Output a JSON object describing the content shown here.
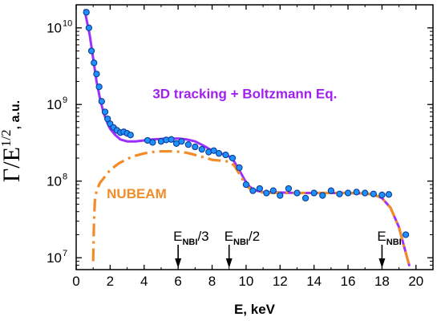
{
  "chart_data": {
    "type": "line",
    "xlabel": "E, keV",
    "ylabel": {
      "main": "Γ/E",
      "sup": "1/2",
      "suffix": ", a.u."
    },
    "xlim": [
      0,
      21
    ],
    "ylim": [
      7000000,
      20000000000
    ],
    "yscale": "log",
    "x_ticks": [
      0,
      2,
      4,
      6,
      8,
      10,
      12,
      14,
      16,
      18,
      20
    ],
    "y_ticks": [
      {
        "value": 10000000,
        "base": "10",
        "exp": "7"
      },
      {
        "value": 100000000,
        "base": "10",
        "exp": "8"
      },
      {
        "value": 1000000000,
        "base": "10",
        "exp": "9"
      },
      {
        "value": 10000000000,
        "base": "10",
        "exp": "10"
      }
    ],
    "annotations": [
      {
        "text": "3D tracking + Boltzmann Eq.",
        "color": "#a020f0",
        "x": 4.5,
        "y": 1200000000
      },
      {
        "text": "NUBEAM",
        "color": "#f28c28",
        "x": 1.8,
        "y": 60000000
      }
    ],
    "markers": [
      {
        "name": "E",
        "sub": "NBI",
        "suffix": "/3",
        "x": 6
      },
      {
        "name": "E",
        "sub": "NBI",
        "suffix": "/2",
        "x": 9
      },
      {
        "name": "E",
        "sub": "NBI",
        "suffix": "",
        "x": 18
      }
    ],
    "series": [
      {
        "style": "line",
        "color": "#9b30ff",
        "x": [
          0.5,
          0.8,
          1.0,
          1.2,
          1.4,
          1.6,
          1.8,
          2.0,
          2.3,
          2.6,
          3.0,
          3.5,
          4.0,
          4.5,
          5.0,
          5.5,
          6.0,
          6.5,
          7.0,
          7.5,
          8.0,
          8.5,
          9.0,
          9.3,
          9.6,
          9.9,
          10.2,
          10.5,
          11.0,
          12.0,
          13.0,
          14.0,
          15.0,
          16.0,
          17.0,
          17.5,
          18.0,
          18.5,
          19.0,
          19.3,
          19.6
        ],
        "y": [
          17000000000,
          8000000000,
          4000000000,
          2000000000,
          1200000000,
          800000000,
          600000000,
          480000000,
          400000000,
          350000000,
          330000000,
          330000000,
          340000000,
          350000000,
          355000000,
          360000000,
          360000000,
          350000000,
          330000000,
          290000000,
          250000000,
          230000000,
          210000000,
          180000000,
          140000000,
          105000000,
          85000000,
          76000000,
          72000000,
          71000000,
          70000000,
          70000000,
          70000000,
          70000000,
          69000000,
          67000000,
          60000000,
          45000000,
          25000000,
          14000000,
          8000000
        ]
      },
      {
        "style": "dashdot",
        "color": "#f28c28",
        "x": [
          1.0,
          1.05,
          1.1,
          1.2,
          1.4,
          1.7,
          2.0,
          2.5,
          3.0,
          3.5,
          4.0,
          4.5,
          5.0,
          5.5,
          6.0,
          6.5,
          7.0,
          7.5,
          8.0,
          8.5,
          9.0,
          9.3,
          9.6,
          9.9,
          10.2,
          10.5,
          11.0,
          12.0,
          13.0,
          14.0,
          15.0,
          16.0,
          17.0,
          17.5,
          18.0,
          18.5,
          19.0,
          19.3,
          19.6
        ],
        "y": [
          9000000,
          30000000,
          55000000,
          75000000,
          95000000,
          115000000,
          140000000,
          170000000,
          195000000,
          215000000,
          230000000,
          240000000,
          245000000,
          245000000,
          242000000,
          235000000,
          220000000,
          205000000,
          190000000,
          185000000,
          180000000,
          160000000,
          125000000,
          95000000,
          80000000,
          74000000,
          71000000,
          70000000,
          70000000,
          70000000,
          70000000,
          70000000,
          69000000,
          67000000,
          60000000,
          45000000,
          25000000,
          14000000,
          8000000
        ]
      },
      {
        "style": "scatter",
        "color": "#1e90ff",
        "x": [
          0.6,
          0.75,
          0.9,
          1.05,
          1.2,
          1.35,
          1.5,
          1.7,
          1.85,
          2.0,
          2.2,
          2.4,
          2.6,
          2.8,
          3.0,
          3.2,
          4.2,
          4.5,
          5.0,
          5.3,
          5.6,
          5.9,
          6.2,
          6.6,
          7.0,
          7.4,
          7.8,
          8.1,
          8.4,
          8.8,
          9.2,
          9.6,
          10.0,
          10.4,
          10.8,
          11.2,
          11.6,
          12.0,
          12.5,
          13.0,
          13.5,
          14.0,
          14.5,
          15.0,
          15.5,
          16.0,
          16.5,
          17.0,
          17.5,
          18.0,
          18.4,
          19.4
        ],
        "y": [
          16000000000,
          10000000000,
          5000000000,
          3500000000,
          2500000000,
          1700000000,
          1100000000,
          800000000,
          650000000,
          560000000,
          500000000,
          460000000,
          430000000,
          440000000,
          420000000,
          400000000,
          340000000,
          320000000,
          330000000,
          345000000,
          350000000,
          310000000,
          330000000,
          300000000,
          280000000,
          260000000,
          240000000,
          250000000,
          230000000,
          220000000,
          200000000,
          150000000,
          90000000,
          75000000,
          80000000,
          70000000,
          75000000,
          65000000,
          80000000,
          70000000,
          60000000,
          70000000,
          65000000,
          75000000,
          68000000,
          70000000,
          72000000,
          70000000,
          68000000,
          66000000,
          67000000,
          20000000
        ]
      }
    ]
  }
}
